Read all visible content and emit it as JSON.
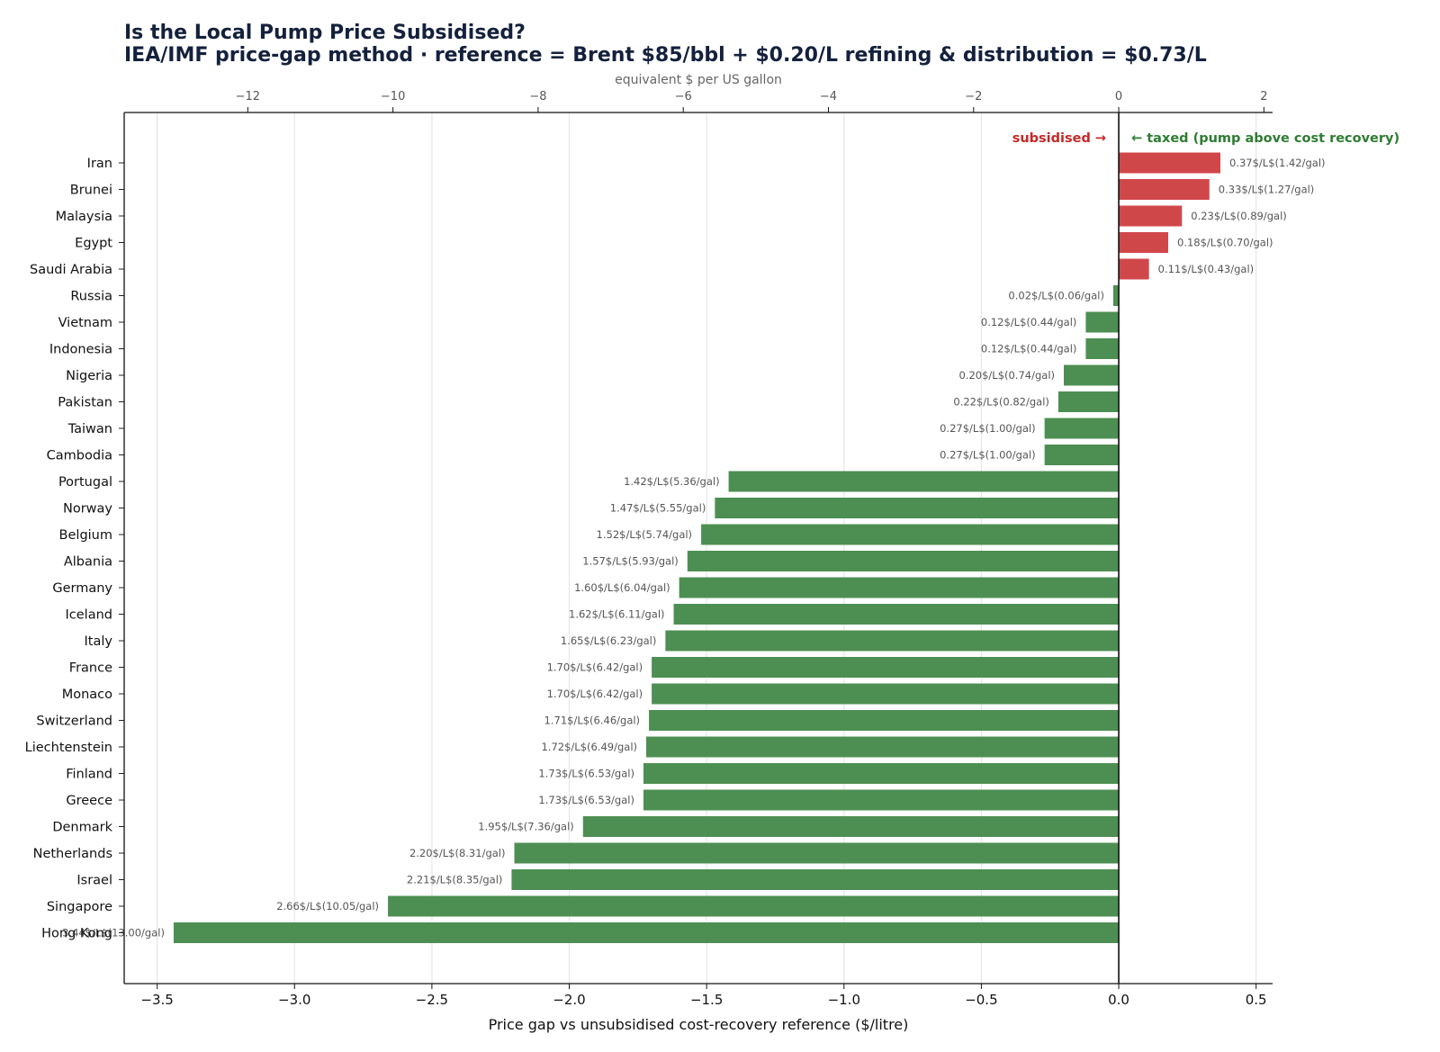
{
  "chart_data": {
    "type": "bar",
    "orientation": "horizontal",
    "title": "Is the Local Pump Price Subsidised?",
    "subtitle": "IEA/IMF price-gap method · reference = Brent $85/bbl + $0.20/L refining & distribution = $0.73/L",
    "xlabel": "Price gap vs unsubsidised cost-recovery reference ($/litre)",
    "x2label": "equivalent $ per US gallon",
    "xlim": [
      -3.62,
      0.56
    ],
    "x_ticks": [
      -3.5,
      -3.0,
      -2.5,
      -2.0,
      -1.5,
      -1.0,
      -0.5,
      0.0,
      0.5
    ],
    "x_tick_labels": [
      "−3.5",
      "−3.0",
      "−2.5",
      "−2.0",
      "−1.5",
      "−1.0",
      "−0.5",
      "0.0",
      "0.5"
    ],
    "x2_ticks": [
      -12,
      -10,
      -8,
      -6,
      -4,
      -2,
      0,
      2
    ],
    "x2_tick_labels": [
      "−12",
      "−10",
      "−8",
      "−6",
      "−4",
      "−2",
      "0",
      "2"
    ],
    "grid": "vertical",
    "annotations": {
      "subsidised": "subsidised →",
      "taxed": "← taxed (pump above cost recovery)"
    },
    "colors": {
      "subsidised": "#d0474a",
      "taxed": "#4d8f52",
      "title": "#14213d",
      "subsidised_text": "#c62828",
      "taxed_text": "#2e7d32"
    },
    "categories": [
      "Iran",
      "Brunei",
      "Malaysia",
      "Egypt",
      "Saudi Arabia",
      "Russia",
      "Vietnam",
      "Indonesia",
      "Nigeria",
      "Pakistan",
      "Taiwan",
      "Cambodia",
      "Portugal",
      "Norway",
      "Belgium",
      "Albania",
      "Germany",
      "Iceland",
      "Italy",
      "France",
      "Monaco",
      "Switzerland",
      "Liechtenstein",
      "Finland",
      "Greece",
      "Denmark",
      "Netherlands",
      "Israel",
      "Singapore",
      "Hong Kong"
    ],
    "values": [
      0.37,
      0.33,
      0.23,
      0.18,
      0.11,
      -0.02,
      -0.12,
      -0.12,
      -0.2,
      -0.22,
      -0.27,
      -0.27,
      -1.42,
      -1.47,
      -1.52,
      -1.57,
      -1.6,
      -1.62,
      -1.65,
      -1.7,
      -1.7,
      -1.71,
      -1.72,
      -1.73,
      -1.73,
      -1.95,
      -2.2,
      -2.21,
      -2.66,
      -3.44
    ],
    "labels": [
      "0.37$/L$(1.42/gal)",
      "0.33$/L$(1.27/gal)",
      "0.23$/L$(0.89/gal)",
      "0.18$/L$(0.70/gal)",
      "0.11$/L$(0.43/gal)",
      "0.02$/L$(0.06/gal)",
      "0.12$/L$(0.44/gal)",
      "0.12$/L$(0.44/gal)",
      "0.20$/L$(0.74/gal)",
      "0.22$/L$(0.82/gal)",
      "0.27$/L$(1.00/gal)",
      "0.27$/L$(1.00/gal)",
      "1.42$/L$(5.36/gal)",
      "1.47$/L$(5.55/gal)",
      "1.52$/L$(5.74/gal)",
      "1.57$/L$(5.93/gal)",
      "1.60$/L$(6.04/gal)",
      "1.62$/L$(6.11/gal)",
      "1.65$/L$(6.23/gal)",
      "1.70$/L$(6.42/gal)",
      "1.70$/L$(6.42/gal)",
      "1.71$/L$(6.46/gal)",
      "1.72$/L$(6.49/gal)",
      "1.73$/L$(6.53/gal)",
      "1.73$/L$(6.53/gal)",
      "1.95$/L$(7.36/gal)",
      "2.20$/L$(8.31/gal)",
      "2.21$/L$(8.35/gal)",
      "2.66$/L$(10.05/gal)",
      "3.44$/L$(13.00/gal)"
    ]
  }
}
